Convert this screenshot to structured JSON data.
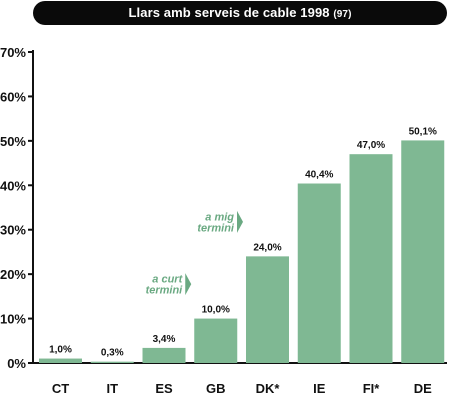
{
  "chart_data": {
    "type": "bar",
    "title": "Llars amb serveis de cable 1998",
    "title_note": "(97)",
    "categories": [
      "CT",
      "IT",
      "ES",
      "GB",
      "DK*",
      "IE",
      "FI*",
      "DE"
    ],
    "values": [
      1.0,
      0.3,
      3.4,
      10.0,
      24.0,
      40.4,
      47.0,
      50.1
    ],
    "data_labels": [
      "1,0%",
      "0,3%",
      "3,4%",
      "10,0%",
      "24,0%",
      "40,4%",
      "47,0%",
      "50,1%"
    ],
    "y_ticks": [
      "0%",
      "10%",
      "20%",
      "30%",
      "40%",
      "50%",
      "60%",
      "70%"
    ],
    "ylim": [
      0,
      70
    ],
    "grid": false,
    "legend": "none",
    "xlabel": "",
    "ylabel": "",
    "annotations": [
      {
        "lines": [
          "a curt",
          "termini"
        ],
        "near_category": "GB"
      },
      {
        "lines": [
          "a mig",
          "termini"
        ],
        "near_category": "DK*"
      }
    ],
    "colors": {
      "bar": "#7fb893",
      "annotation": "#6aa982",
      "axis": "#111111",
      "title_bg": "#0a0a0a",
      "title_text": "#ffffff"
    }
  }
}
